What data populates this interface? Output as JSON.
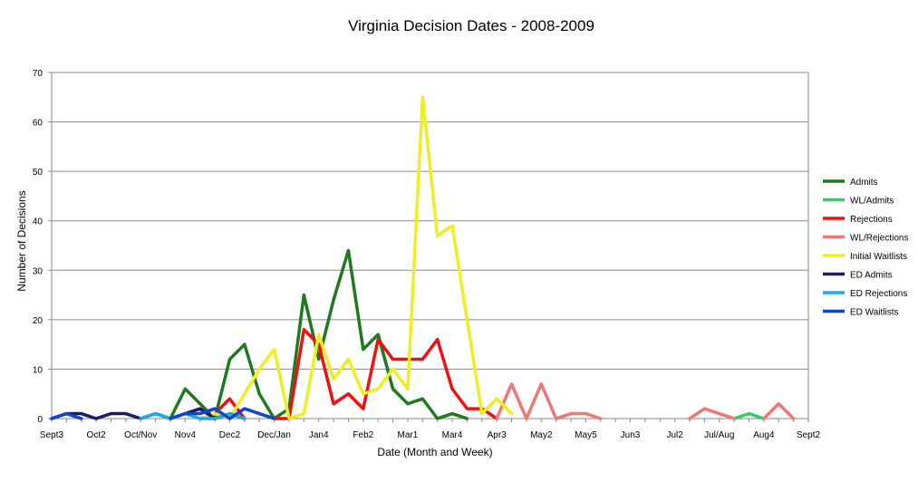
{
  "chart_data": {
    "type": "line",
    "title": "Virginia Decision  Dates  - 2008-2009",
    "xlabel": "Date (Month and Week)",
    "ylabel": "Number of Decisions",
    "ylim": [
      0,
      70
    ],
    "yticks": [
      0,
      10,
      20,
      30,
      40,
      50,
      60,
      70
    ],
    "grid": true,
    "legend_position": "right",
    "x_labels": [
      "Sept3",
      "Oct2",
      "Oct/Nov",
      "Nov4",
      "Dec2",
      "Dec/Jan",
      "Jan4",
      "Feb2",
      "Mar1",
      "Mar4",
      "Apr3",
      "May2",
      "May5",
      "Jun3",
      "Jul2",
      "Jul/Aug",
      "Aug4",
      "Sept2"
    ],
    "x_label_positions": [
      0,
      3,
      6,
      9,
      12,
      15,
      18,
      21,
      24,
      27,
      30,
      33,
      36,
      39,
      42,
      45,
      48,
      51
    ],
    "x_range": [
      0,
      51
    ],
    "series": [
      {
        "name": "Admits",
        "color": "#1f7a1f",
        "values": [
          {
            "x": 8,
            "y": 0
          },
          {
            "x": 9,
            "y": 6
          },
          {
            "x": 10,
            "y": 3
          },
          {
            "x": 11,
            "y": 0
          },
          {
            "x": 12,
            "y": 12
          },
          {
            "x": 13,
            "y": 15
          },
          {
            "x": 14,
            "y": 5
          },
          {
            "x": 15,
            "y": 0
          },
          {
            "x": 16,
            "y": 2
          },
          {
            "x": 17,
            "y": 25
          },
          {
            "x": 18,
            "y": 12
          },
          {
            "x": 19,
            "y": 24
          },
          {
            "x": 20,
            "y": 34
          },
          {
            "x": 21,
            "y": 14
          },
          {
            "x": 22,
            "y": 17
          },
          {
            "x": 23,
            "y": 6
          },
          {
            "x": 24,
            "y": 3
          },
          {
            "x": 25,
            "y": 4
          },
          {
            "x": 26,
            "y": 0
          },
          {
            "x": 27,
            "y": 1
          },
          {
            "x": 28,
            "y": 0
          }
        ]
      },
      {
        "name": "WL/Admits",
        "color": "#33cc66",
        "values": [
          {
            "x": 46,
            "y": 0
          },
          {
            "x": 47,
            "y": 1
          },
          {
            "x": 48,
            "y": 0
          }
        ]
      },
      {
        "name": "Rejections",
        "color": "#ee1111",
        "values": [
          {
            "x": 10,
            "y": 0
          },
          {
            "x": 11,
            "y": 1
          },
          {
            "x": 12,
            "y": 4
          },
          {
            "x": 13,
            "y": 0
          },
          {
            "x": 15,
            "y": 0
          },
          {
            "x": 16,
            "y": 0
          },
          {
            "x": 17,
            "y": 18
          },
          {
            "x": 18,
            "y": 15
          },
          {
            "x": 19,
            "y": 3
          },
          {
            "x": 20,
            "y": 5
          },
          {
            "x": 21,
            "y": 2
          },
          {
            "x": 22,
            "y": 16
          },
          {
            "x": 23,
            "y": 12
          },
          {
            "x": 24,
            "y": 12
          },
          {
            "x": 25,
            "y": 12
          },
          {
            "x": 26,
            "y": 16
          },
          {
            "x": 27,
            "y": 6
          },
          {
            "x": 28,
            "y": 2
          },
          {
            "x": 29,
            "y": 2
          },
          {
            "x": 30,
            "y": 0
          }
        ]
      },
      {
        "name": "WL/Rejections",
        "color": "#ee7777",
        "values": [
          {
            "x": 30,
            "y": 0
          },
          {
            "x": 31,
            "y": 7
          },
          {
            "x": 32,
            "y": 0
          },
          {
            "x": 33,
            "y": 7
          },
          {
            "x": 34,
            "y": 0
          },
          {
            "x": 35,
            "y": 1
          },
          {
            "x": 36,
            "y": 1
          },
          {
            "x": 37,
            "y": 0
          },
          {
            "x": 43,
            "y": 0
          },
          {
            "x": 44,
            "y": 2
          },
          {
            "x": 45,
            "y": 1
          },
          {
            "x": 46,
            "y": 0
          },
          {
            "x": 48,
            "y": 0
          },
          {
            "x": 49,
            "y": 3
          },
          {
            "x": 50,
            "y": 0
          }
        ]
      },
      {
        "name": "Initial Waitlists",
        "color": "#eeee22",
        "values": [
          {
            "x": 10,
            "y": 0
          },
          {
            "x": 11,
            "y": 1
          },
          {
            "x": 12,
            "y": 0
          },
          {
            "x": 13,
            "y": 5
          },
          {
            "x": 14,
            "y": 10
          },
          {
            "x": 15,
            "y": 14
          },
          {
            "x": 16,
            "y": 0
          },
          {
            "x": 17,
            "y": 1
          },
          {
            "x": 18,
            "y": 17
          },
          {
            "x": 19,
            "y": 8
          },
          {
            "x": 20,
            "y": 12
          },
          {
            "x": 21,
            "y": 5
          },
          {
            "x": 22,
            "y": 6
          },
          {
            "x": 23,
            "y": 10
          },
          {
            "x": 24,
            "y": 6
          },
          {
            "x": 25,
            "y": 65
          },
          {
            "x": 26,
            "y": 37
          },
          {
            "x": 27,
            "y": 39
          },
          {
            "x": 28,
            "y": 20
          },
          {
            "x": 29,
            "y": 1
          },
          {
            "x": 30,
            "y": 4
          },
          {
            "x": 31,
            "y": 1
          }
        ]
      },
      {
        "name": "ED Admits",
        "color": "#1a1a66",
        "values": [
          {
            "x": 0,
            "y": 0
          },
          {
            "x": 1,
            "y": 1
          },
          {
            "x": 2,
            "y": 1
          },
          {
            "x": 3,
            "y": 0
          },
          {
            "x": 4,
            "y": 1
          },
          {
            "x": 5,
            "y": 1
          },
          {
            "x": 6,
            "y": 0
          },
          {
            "x": 7,
            "y": 1
          },
          {
            "x": 8,
            "y": 0
          },
          {
            "x": 9,
            "y": 1
          },
          {
            "x": 10,
            "y": 2
          },
          {
            "x": 11,
            "y": 0
          },
          {
            "x": 12,
            "y": 1
          },
          {
            "x": 13,
            "y": 0
          }
        ]
      },
      {
        "name": "ED Rejections",
        "color": "#1ea8e8",
        "values": [
          {
            "x": 6,
            "y": 0
          },
          {
            "x": 7,
            "y": 1
          },
          {
            "x": 8,
            "y": 0
          },
          {
            "x": 9,
            "y": 1
          },
          {
            "x": 10,
            "y": 0
          },
          {
            "x": 11,
            "y": 0
          },
          {
            "x": 12,
            "y": 1
          },
          {
            "x": 13,
            "y": 0
          }
        ]
      },
      {
        "name": "ED Waitlists",
        "color": "#1144cc",
        "values": [
          {
            "x": 0,
            "y": 0
          },
          {
            "x": 1,
            "y": 1
          },
          {
            "x": 2,
            "y": 0
          },
          {
            "x": 8,
            "y": 0
          },
          {
            "x": 9,
            "y": 1
          },
          {
            "x": 10,
            "y": 1
          },
          {
            "x": 11,
            "y": 2
          },
          {
            "x": 12,
            "y": 0
          },
          {
            "x": 13,
            "y": 2
          },
          {
            "x": 14,
            "y": 1
          },
          {
            "x": 15,
            "y": 0
          }
        ]
      }
    ]
  }
}
